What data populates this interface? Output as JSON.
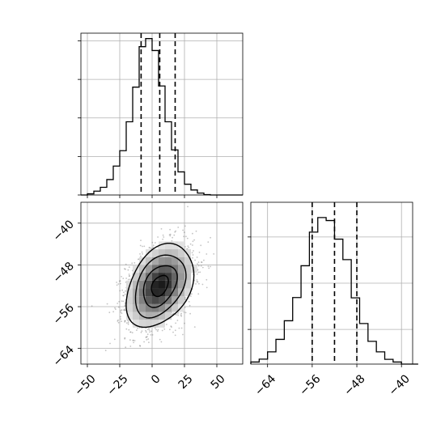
{
  "chart_data": [
    {
      "id": "hist_x",
      "type": "histogram",
      "title": "",
      "xlabel": "",
      "ylabel": "",
      "xlim": [
        -55,
        70
      ],
      "ylim": [
        0,
        0.042
      ],
      "bin_edges": [
        -55,
        -50,
        -45,
        -40,
        -35,
        -30,
        -25,
        -20,
        -15,
        -10,
        -5,
        0,
        5,
        10,
        15,
        20,
        25,
        30,
        35,
        40,
        45,
        50,
        55,
        60,
        65,
        70
      ],
      "counts": [
        0,
        0.0003,
        0.001,
        0.002,
        0.004,
        0.0075,
        0.0115,
        0.019,
        0.028,
        0.0385,
        0.0406,
        0.0375,
        0.0283,
        0.019,
        0.0117,
        0.006,
        0.0028,
        0.0013,
        0.0005,
        0.0001,
        0,
        0,
        0,
        0,
        0
      ],
      "quantile_lines": [
        -8.5,
        5.9,
        17.8
      ],
      "grid": true
    },
    {
      "id": "scatter_xy",
      "type": "scatter",
      "xlabel": "",
      "ylabel": "",
      "xlim": [
        -55,
        70
      ],
      "ylim": [
        -67,
        -36
      ],
      "xticks": [
        "−50",
        "−25",
        "0",
        "25",
        "50"
      ],
      "xtick_values": [
        -50,
        -25,
        0,
        25,
        50
      ],
      "yticks": [
        "−40",
        "−48",
        "−56",
        "−64"
      ],
      "ytick_values": [
        -40,
        -48,
        -56,
        -64
      ],
      "mean": [
        6,
        -52
      ],
      "std": [
        13,
        4
      ],
      "correlation": 0.35,
      "contour_levels": 4,
      "grid": true
    },
    {
      "id": "hist_y",
      "type": "histogram",
      "xlabel": "",
      "ylabel": "",
      "xlim": [
        -67,
        -38
      ],
      "ylim": [
        0,
        0.14
      ],
      "xticks": [
        "−64",
        "−56",
        "−48",
        "−40"
      ],
      "xtick_values": [
        -64,
        -56,
        -48,
        -40
      ],
      "bin_edges": [
        -67,
        -65.5,
        -64,
        -62.5,
        -61,
        -59.5,
        -58,
        -56.5,
        -55,
        -53.5,
        -52,
        -50.5,
        -49,
        -47.5,
        -46,
        -44.5,
        -43,
        -41.5,
        -40,
        -38.5,
        -37
      ],
      "counts": [
        0.0018,
        0.0043,
        0.0106,
        0.0214,
        0.0375,
        0.0576,
        0.0851,
        0.1142,
        0.1268,
        0.1242,
        0.1081,
        0.0904,
        0.0573,
        0.0351,
        0.0197,
        0.0106,
        0.0041,
        0.0018,
        0,
        0
      ],
      "quantile_lines": [
        -56,
        -52,
        -48
      ],
      "grid": true
    }
  ]
}
